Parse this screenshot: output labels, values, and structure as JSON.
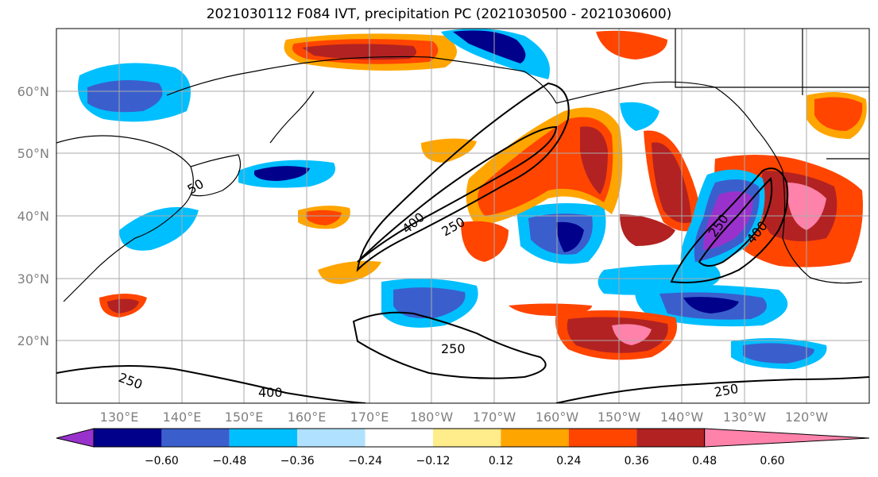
{
  "title": "2021030112 F084 IVT, precipitation PC (2021030500 - 2021030600)",
  "map": {
    "lat_labels": [
      "60°N",
      "50°N",
      "40°N",
      "30°N",
      "20°N"
    ],
    "lon_labels": [
      "130°E",
      "140°E",
      "150°E",
      "160°E",
      "170°E",
      "180°W",
      "170°W",
      "160°W",
      "150°W",
      "140°W",
      "130°W",
      "120°W"
    ],
    "contour_labels": [
      "400",
      "250",
      "250",
      "400",
      "250",
      "250",
      "400",
      "250",
      "50"
    ]
  },
  "colorbar": {
    "colors": [
      "#9932cc",
      "#00008b",
      "#3a5fcd",
      "#00bfff",
      "#b0e2ff",
      "#ffffff",
      "#ffec8b",
      "#ffa500",
      "#ff4500",
      "#b22222",
      "#ff82ab"
    ],
    "tick_labels": [
      "−0.60",
      "−0.48",
      "−0.36",
      "−0.24",
      "−0.12",
      "0.12",
      "0.24",
      "0.36",
      "0.48",
      "0.60"
    ]
  }
}
